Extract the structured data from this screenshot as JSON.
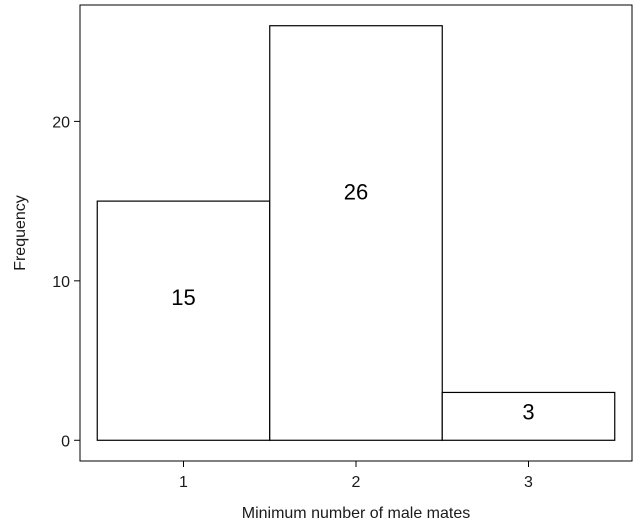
{
  "chart_data": {
    "type": "bar",
    "categories": [
      "1",
      "2",
      "3"
    ],
    "values": [
      15,
      26,
      3
    ],
    "data_labels": [
      "15",
      "26",
      "3"
    ],
    "title": "",
    "xlabel": "Minimum number of male mates",
    "ylabel": "Frequency",
    "ylim": [
      -1.3,
      27.3
    ],
    "yticks": [
      0,
      10,
      20
    ],
    "ytick_labels": [
      "0",
      "10",
      "20"
    ],
    "grid": false,
    "legend": "none",
    "bar_fill": "#ffffff",
    "bar_stroke": "#000000",
    "axis_color": "#000000"
  }
}
